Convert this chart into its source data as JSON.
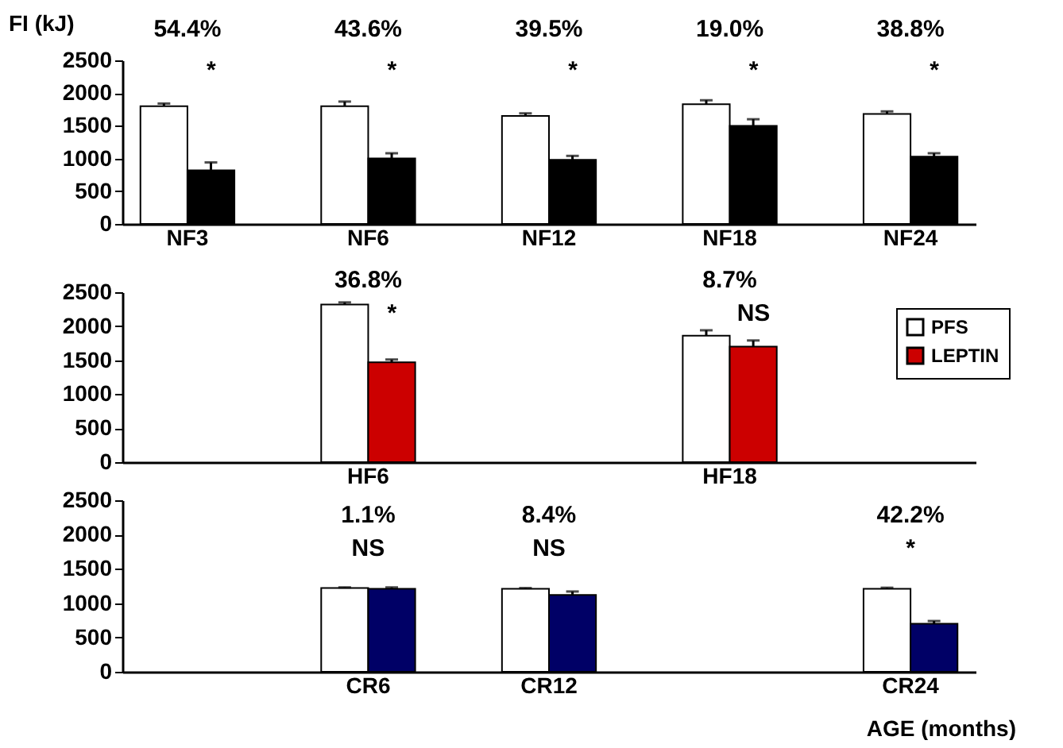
{
  "chart_data": [
    {
      "type": "bar",
      "ylabel": "FI (kJ)",
      "categories": [
        "NF3",
        "NF6",
        "NF12",
        "NF18",
        "NF24"
      ],
      "ylim": [
        0,
        2500
      ],
      "yticks": [
        0,
        500,
        1000,
        1500,
        2000,
        2500
      ],
      "series": [
        {
          "color": "#ffffff",
          "values": [
            1800,
            1800,
            1650,
            1830,
            1680
          ],
          "errors": [
            [
              1800,
              1840
            ],
            [
              1800,
              1870
            ],
            [
              1650,
              1690
            ],
            [
              1830,
              1890
            ],
            [
              1680,
              1720
            ]
          ]
        },
        {
          "color": "#000000",
          "values": [
            820,
            1000,
            980,
            1500,
            1030
          ],
          "errors": [
            [
              820,
              940
            ],
            [
              1000,
              1080
            ],
            [
              980,
              1040
            ],
            [
              1500,
              1600
            ],
            [
              1030,
              1080
            ]
          ]
        }
      ],
      "annotations": [
        "54.4%",
        "*",
        "43.6%",
        "*",
        "39.5%",
        "*",
        "19.0%",
        "*",
        "38.8%",
        "*"
      ]
    },
    {
      "type": "bar",
      "categories": [
        null,
        "HF6",
        null,
        "HF18",
        null
      ],
      "ylim": [
        0,
        2500
      ],
      "yticks": [
        0,
        500,
        1000,
        1500,
        2000,
        2500
      ],
      "legend": "right",
      "series": [
        {
          "name": "PFS",
          "color": "#ffffff",
          "values": [
            null,
            2320,
            null,
            1860,
            null
          ],
          "errors": [
            null,
            [
              2320,
              2350
            ],
            null,
            [
              1860,
              1940
            ],
            null
          ]
        },
        {
          "name": "LEPTIN",
          "color": "#cc0000",
          "values": [
            null,
            1470,
            null,
            1700,
            null
          ],
          "errors": [
            null,
            [
              1470,
              1510
            ],
            null,
            [
              1700,
              1790
            ],
            null
          ]
        }
      ],
      "annotations": [
        "36.8%",
        "*",
        "8.7%",
        "NS"
      ]
    },
    {
      "type": "bar",
      "xlabel": "AGE (months)",
      "categories": [
        null,
        "CR6",
        "CR12",
        null,
        "CR24"
      ],
      "ylim": [
        0,
        2500
      ],
      "yticks": [
        0,
        500,
        1000,
        1500,
        2000,
        2500
      ],
      "series": [
        {
          "color": "#ffffff",
          "values": [
            null,
            1220,
            1210,
            null,
            1210
          ],
          "errors": [
            null,
            [
              1220,
              1230
            ],
            [
              1210,
              1220
            ],
            null,
            [
              1210,
              1225
            ]
          ]
        },
        {
          "color": "#000066",
          "values": [
            null,
            1210,
            1120,
            null,
            700
          ],
          "errors": [
            null,
            [
              1210,
              1230
            ],
            [
              1120,
              1170
            ],
            null,
            [
              700,
              740
            ]
          ]
        }
      ],
      "annotations": [
        "1.1%",
        "NS",
        "8.4%",
        "NS",
        "42.2%",
        "*"
      ]
    }
  ]
}
